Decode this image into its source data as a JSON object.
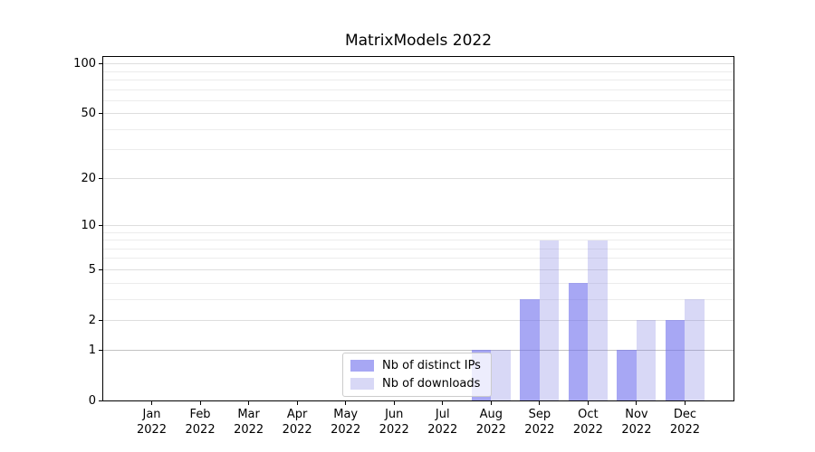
{
  "figure": {
    "background": "#ffffff"
  },
  "chart_data": {
    "type": "bar",
    "title": "MatrixModels 2022",
    "categories": [
      "Jan",
      "Feb",
      "Mar",
      "Apr",
      "May",
      "Jun",
      "Jul",
      "Aug",
      "Sep",
      "Oct",
      "Nov",
      "Dec"
    ],
    "year_label": "2022",
    "series": [
      {
        "name": "Nb of distinct IPs",
        "color": "rgba(109,109,236,0.6)",
        "values": [
          0,
          0,
          0,
          0,
          0,
          0,
          0,
          1,
          3,
          4,
          1,
          2
        ]
      },
      {
        "name": "Nb of downloads",
        "color": "rgba(126,126,226,0.3)",
        "values": [
          0,
          0,
          0,
          0,
          0,
          0,
          0,
          1,
          8,
          8,
          2,
          3
        ]
      }
    ],
    "yscale": "log1p",
    "ylim": [
      0,
      110
    ],
    "yticks_major": [
      0,
      1,
      2,
      5,
      10,
      20,
      50,
      100
    ],
    "yticks_minor": [
      3,
      4,
      6,
      7,
      8,
      9,
      30,
      40,
      60,
      70,
      80,
      90
    ],
    "xlabel": "",
    "ylabel": "",
    "grid": "both",
    "legend_position": "lower center"
  }
}
